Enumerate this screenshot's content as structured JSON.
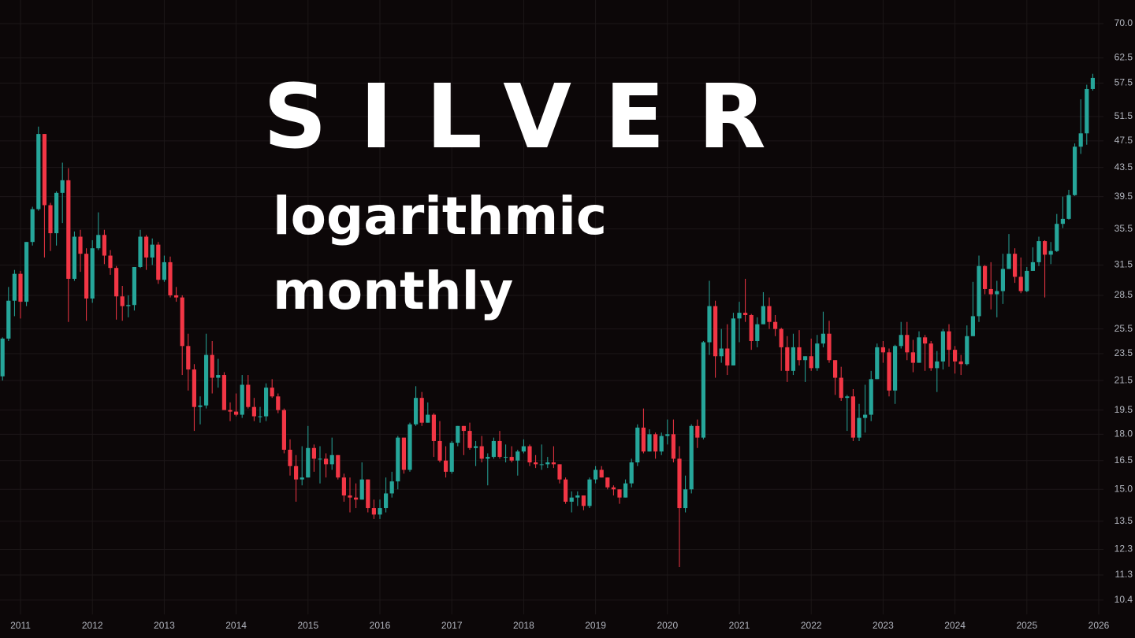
{
  "chart_data": {
    "type": "candlestick",
    "title": "SILVER",
    "subtitle_lines": [
      "logarithmic",
      "monthly"
    ],
    "categories": [
      null,
      null,
      null,
      "2011",
      null,
      null,
      null,
      null,
      null,
      null,
      null,
      null,
      null,
      null,
      null,
      "2012",
      null,
      null,
      null,
      null,
      null,
      null,
      null,
      null,
      null,
      null,
      null,
      "2013",
      null,
      null,
      null,
      null,
      null,
      null,
      null,
      null,
      null,
      null,
      null,
      "2014",
      null,
      null,
      null,
      null,
      null,
      null,
      null,
      null,
      null,
      null,
      null,
      "2015",
      null,
      null,
      null,
      null,
      null,
      null,
      null,
      null,
      null,
      null,
      null,
      "2016",
      null,
      null,
      null,
      null,
      null,
      null,
      null,
      null,
      null,
      null,
      null,
      "2017",
      null,
      null,
      null,
      null,
      null,
      null,
      null,
      null,
      null,
      null,
      null,
      "2018",
      null,
      null,
      null,
      null,
      null,
      null,
      null,
      null,
      null,
      null,
      null,
      "2019",
      null,
      null,
      null,
      null,
      null,
      null,
      null,
      null,
      null,
      null,
      null,
      "2020",
      null,
      null,
      null,
      null,
      null,
      null,
      null,
      null,
      null,
      null,
      null,
      "2021",
      null,
      null,
      null,
      null,
      null,
      null,
      null,
      null,
      null,
      null,
      null,
      "2022",
      null,
      null,
      null,
      null,
      null,
      null,
      null,
      null,
      null,
      null,
      null,
      "2023",
      null,
      null,
      null,
      null,
      null,
      null,
      null,
      null,
      null,
      null,
      null,
      "2024",
      null,
      null,
      null,
      null,
      null,
      null,
      null,
      null,
      null,
      null,
      null,
      "2025",
      null,
      null,
      null,
      null,
      null,
      null,
      null,
      null,
      null,
      null,
      null,
      "2026"
    ],
    "open": [
      21.8,
      24.7,
      28.0,
      30.6,
      27.9,
      34.0,
      37.9,
      48.6,
      38.4,
      35.0,
      40.0,
      41.7,
      30.1,
      34.6,
      32.7,
      28.2,
      33.3,
      34.8,
      32.5,
      31.2,
      28.4,
      27.5,
      27.6,
      31.3,
      34.6,
      32.3,
      33.7,
      30.0,
      31.8,
      28.5,
      28.3,
      24.1,
      22.3,
      19.7,
      19.8,
      23.4,
      21.7,
      21.9,
      19.5,
      19.4,
      19.2,
      21.2,
      19.7,
      19.1,
      19.1,
      21.0,
      20.4,
      19.5,
      17.1,
      16.2,
      15.5,
      15.6,
      17.2,
      16.6,
      16.6,
      16.3,
      16.8,
      15.6,
      14.7,
      14.6,
      14.5,
      15.5,
      14.1,
      13.8,
      14.1,
      14.8,
      15.4,
      17.8,
      16.0,
      18.6,
      20.3,
      18.7,
      19.2,
      17.6,
      16.5,
      15.9,
      17.5,
      18.5,
      18.2,
      17.2,
      17.3,
      16.6,
      16.7,
      17.6,
      16.7,
      16.7,
      16.5,
      17.0,
      17.3,
      16.4,
      16.3,
      16.3,
      16.4,
      16.3,
      15.5,
      14.4,
      14.6,
      14.7,
      14.2,
      15.5,
      16.0,
      15.6,
      15.1,
      15.0,
      14.6,
      15.3,
      16.4,
      18.4,
      17.0,
      18.0,
      17.0,
      17.9,
      18.0,
      16.6,
      14.1,
      15.0,
      18.5,
      17.8,
      24.4,
      27.5,
      23.3,
      23.9,
      22.6,
      26.4,
      26.9,
      26.7,
      24.5,
      25.9,
      27.5,
      26.1,
      25.5,
      24.0,
      22.2,
      24.0,
      23.0,
      23.3,
      22.4,
      24.3,
      25.1,
      23.0,
      21.7,
      20.3,
      20.4,
      17.8,
      19.0,
      19.2,
      21.6,
      24.0,
      23.6,
      20.8,
      24.1,
      25.0,
      23.6,
      22.8,
      24.8,
      24.3,
      22.4,
      22.9,
      25.3,
      23.8,
      22.9,
      22.7,
      24.9,
      26.6,
      31.4,
      29.1,
      28.6,
      28.9,
      31.1,
      32.7,
      30.3,
      28.9,
      30.9,
      31.8,
      34.1,
      32.6,
      33.0,
      36.1,
      36.7,
      39.7,
      46.6,
      48.7,
      56.4,
      null
    ],
    "high": [
      24.8,
      29.3,
      31.0,
      30.9,
      34.0,
      38.2,
      49.8,
      48.6,
      38.7,
      40.2,
      44.2,
      43.4,
      35.2,
      35.4,
      33.3,
      34.2,
      37.5,
      35.4,
      33.1,
      31.4,
      29.4,
      28.5,
      31.3,
      35.4,
      34.8,
      34.4,
      34.0,
      32.5,
      32.4,
      29.3,
      28.5,
      25.1,
      22.7,
      20.4,
      25.1,
      24.5,
      23.1,
      22.1,
      20.0,
      20.6,
      21.9,
      21.9,
      20.3,
      19.7,
      21.3,
      21.6,
      20.6,
      19.6,
      17.7,
      16.8,
      17.3,
      18.5,
      17.4,
      17.3,
      16.9,
      17.8,
      16.8,
      15.8,
      15.6,
      15.3,
      16.4,
      15.5,
      14.5,
      14.5,
      15.6,
      15.9,
      17.9,
      17.8,
      18.7,
      21.1,
      20.7,
      20.0,
      19.3,
      18.8,
      17.3,
      17.6,
      18.5,
      18.5,
      18.7,
      17.6,
      17.9,
      16.9,
      17.8,
      18.2,
      17.4,
      17.3,
      17.1,
      17.7,
      17.4,
      16.8,
      17.4,
      16.7,
      17.3,
      16.3,
      15.6,
      14.9,
      14.9,
      14.7,
      15.6,
      16.2,
      16.2,
      15.6,
      15.2,
      15.0,
      15.5,
      16.6,
      18.6,
      19.6,
      18.3,
      18.1,
      18.1,
      18.9,
      18.9,
      17.3,
      15.7,
      18.6,
      18.9,
      24.5,
      29.9,
      28.0,
      25.5,
      25.9,
      26.9,
      27.9,
      30.1,
      26.8,
      26.5,
      28.8,
      28.3,
      26.7,
      25.6,
      24.9,
      25.1,
      25.4,
      23.3,
      24.7,
      25.0,
      27.0,
      26.2,
      23.0,
      22.5,
      20.5,
      20.9,
      19.9,
      21.2,
      22.2,
      24.3,
      24.5,
      23.9,
      24.2,
      26.1,
      26.1,
      24.6,
      25.3,
      25.0,
      24.5,
      23.7,
      25.5,
      25.9,
      24.1,
      23.4,
      25.8,
      29.8,
      32.5,
      31.5,
      31.8,
      29.9,
      32.7,
      34.9,
      33.3,
      32.3,
      31.3,
      33.4,
      34.6,
      34.2,
      34.0,
      37.3,
      39.5,
      40.4,
      47.1,
      54.5,
      57.2,
      59.3,
      null
    ],
    "low": [
      21.5,
      24.5,
      26.6,
      26.4,
      27.5,
      33.6,
      37.7,
      32.3,
      33.0,
      33.6,
      36.2,
      26.1,
      29.9,
      30.8,
      26.2,
      27.8,
      33.1,
      31.6,
      30.5,
      26.3,
      26.2,
      26.5,
      27.1,
      31.2,
      31.0,
      31.5,
      29.6,
      29.8,
      28.3,
      27.9,
      21.9,
      20.8,
      18.2,
      18.6,
      19.6,
      20.6,
      21.0,
      19.5,
      18.8,
      19.1,
      19.0,
      19.6,
      18.8,
      18.7,
      18.8,
      20.3,
      19.3,
      16.9,
      15.7,
      14.4,
      15.2,
      15.6,
      15.9,
      15.3,
      15.6,
      16.0,
      15.5,
      14.4,
      13.9,
      14.1,
      14.5,
      13.9,
      13.6,
      13.6,
      13.9,
      14.6,
      15.0,
      15.8,
      15.9,
      18.5,
      18.5,
      18.7,
      16.7,
      16.4,
      15.6,
      15.8,
      17.3,
      16.8,
      17.1,
      16.2,
      16.4,
      15.2,
      16.6,
      16.6,
      16.4,
      16.4,
      15.7,
      16.9,
      16.2,
      16.1,
      16.0,
      16.1,
      16.1,
      15.3,
      14.3,
      13.9,
      14.2,
      14.0,
      14.1,
      15.3,
      15.6,
      15.0,
      14.7,
      14.3,
      14.6,
      15.1,
      16.2,
      16.9,
      17.0,
      16.6,
      16.8,
      17.4,
      16.4,
      11.6,
      13.9,
      14.8,
      17.2,
      17.7,
      23.4,
      21.7,
      22.8,
      21.9,
      22.6,
      24.4,
      26.1,
      23.8,
      24.0,
      25.9,
      25.5,
      24.9,
      22.2,
      21.4,
      21.9,
      22.6,
      21.4,
      22.2,
      22.2,
      24.0,
      22.8,
      20.5,
      20.1,
      18.2,
      17.6,
      17.6,
      18.1,
      18.8,
      21.6,
      22.8,
      20.4,
      19.9,
      23.9,
      23.0,
      22.1,
      22.8,
      22.2,
      22.2,
      20.7,
      22.3,
      22.5,
      22.0,
      21.9,
      22.6,
      24.9,
      26.1,
      28.6,
      27.2,
      26.5,
      27.7,
      31.1,
      29.7,
      28.7,
      28.8,
      30.9,
      31.4,
      28.3,
      31.6,
      32.9,
      35.6,
      36.6,
      39.6,
      45.5,
      46.9,
      56.1,
      null
    ],
    "close": [
      24.7,
      28.0,
      30.6,
      27.9,
      34.0,
      37.9,
      48.6,
      38.4,
      35.0,
      40.0,
      41.7,
      30.1,
      34.6,
      32.7,
      28.2,
      33.3,
      34.8,
      32.5,
      31.2,
      28.4,
      27.5,
      27.6,
      31.3,
      34.6,
      32.3,
      33.7,
      30.0,
      31.8,
      28.5,
      28.3,
      24.1,
      22.3,
      19.7,
      19.8,
      23.4,
      21.7,
      21.9,
      19.5,
      19.4,
      19.2,
      21.2,
      19.7,
      19.1,
      19.1,
      21.0,
      20.4,
      19.5,
      17.1,
      16.2,
      15.5,
      15.6,
      17.2,
      16.6,
      16.6,
      16.3,
      16.8,
      15.6,
      14.7,
      14.6,
      14.5,
      15.5,
      14.1,
      13.8,
      14.1,
      14.8,
      15.4,
      17.8,
      16.0,
      18.6,
      20.3,
      18.7,
      19.2,
      17.6,
      16.5,
      15.9,
      17.5,
      18.5,
      18.2,
      17.2,
      17.3,
      16.6,
      16.7,
      17.6,
      16.7,
      16.7,
      16.5,
      17.0,
      17.3,
      16.4,
      16.3,
      16.3,
      16.4,
      16.3,
      15.5,
      14.4,
      14.6,
      14.7,
      14.2,
      15.5,
      16.0,
      15.6,
      15.1,
      15.0,
      14.6,
      15.3,
      16.4,
      18.4,
      17.0,
      18.0,
      17.0,
      17.9,
      18.0,
      16.6,
      14.1,
      15.0,
      18.5,
      17.8,
      24.4,
      27.5,
      23.3,
      23.9,
      22.6,
      26.4,
      26.9,
      26.7,
      24.5,
      25.9,
      27.5,
      26.1,
      25.5,
      24.0,
      22.2,
      24.0,
      23.0,
      23.3,
      22.4,
      24.3,
      25.1,
      23.0,
      21.7,
      20.3,
      20.4,
      17.8,
      19.0,
      19.2,
      21.6,
      24.0,
      23.6,
      20.8,
      24.1,
      25.0,
      23.6,
      22.8,
      24.8,
      24.3,
      22.4,
      22.9,
      25.3,
      23.8,
      22.9,
      22.7,
      24.9,
      26.6,
      31.4,
      29.1,
      28.6,
      28.9,
      31.1,
      32.7,
      30.3,
      28.9,
      30.9,
      31.8,
      34.1,
      32.6,
      33.0,
      36.1,
      36.7,
      39.7,
      46.6,
      48.7,
      56.4,
      58.5,
      null
    ],
    "up_color": "#26a69a",
    "down_color": "#f23645",
    "y_scale": "log",
    "ylim": [
      9.92,
      75.7
    ],
    "yticks": [
      {
        "value": 70,
        "label": "70.0"
      },
      62.5,
      57.5,
      51.5,
      47.5,
      43.5,
      39.5,
      35.5,
      31.5,
      28.5,
      25.5,
      23.5,
      21.5,
      19.5,
      {
        "value": 18,
        "label": "18.0"
      },
      16.5,
      {
        "value": 15,
        "label": "15.0"
      },
      13.5,
      12.3,
      11.3,
      10.4
    ],
    "grid": true
  }
}
